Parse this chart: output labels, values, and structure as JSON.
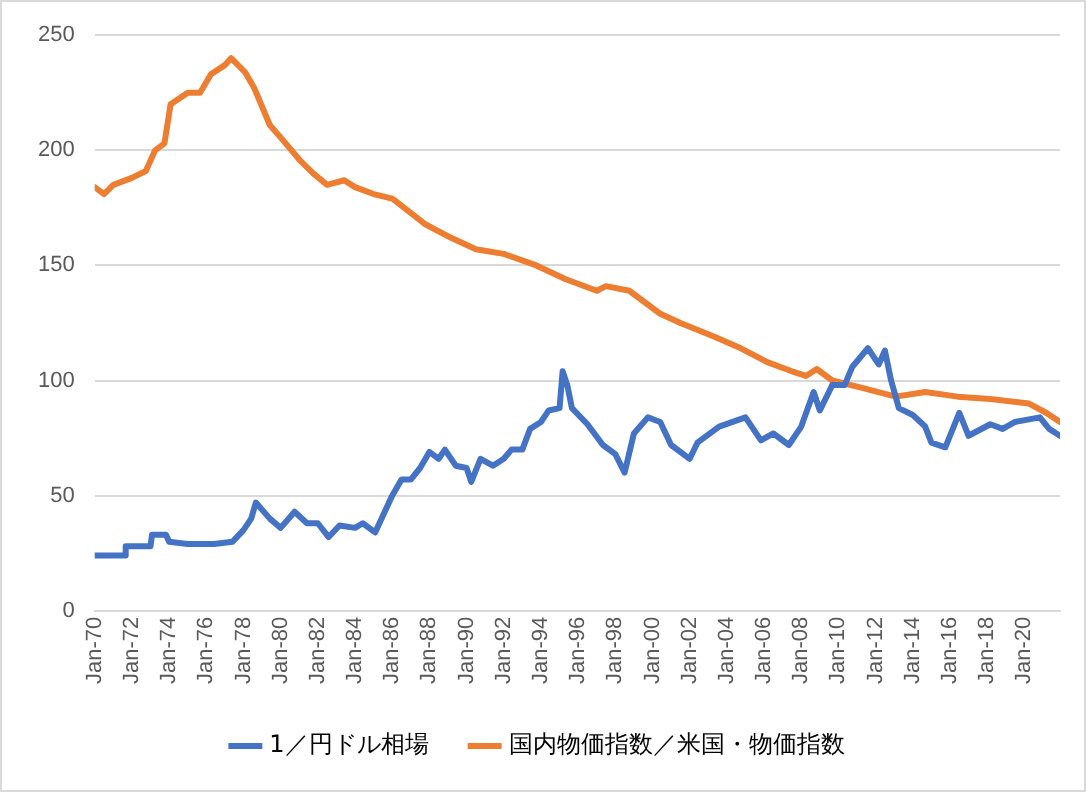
{
  "chart_data": {
    "type": "line",
    "xlim": [
      "1970-01",
      "2021-12"
    ],
    "xticks": [
      {
        "value": "1970-01",
        "label": "Jan-70"
      },
      {
        "value": "1972-01",
        "label": "Jan-72"
      },
      {
        "value": "1974-01",
        "label": "Jan-74"
      },
      {
        "value": "1976-01",
        "label": "Jan-76"
      },
      {
        "value": "1978-01",
        "label": "Jan-78"
      },
      {
        "value": "1980-01",
        "label": "Jan-80"
      },
      {
        "value": "1982-01",
        "label": "Jan-82"
      },
      {
        "value": "1984-01",
        "label": "Jan-84"
      },
      {
        "value": "1986-01",
        "label": "Jan-86"
      },
      {
        "value": "1988-01",
        "label": "Jan-88"
      },
      {
        "value": "1990-01",
        "label": "Jan-90"
      },
      {
        "value": "1992-01",
        "label": "Jan-92"
      },
      {
        "value": "1994-01",
        "label": "Jan-94"
      },
      {
        "value": "1996-01",
        "label": "Jan-96"
      },
      {
        "value": "1998-01",
        "label": "Jan-98"
      },
      {
        "value": "2000-01",
        "label": "Jan-00"
      },
      {
        "value": "2002-01",
        "label": "Jan-02"
      },
      {
        "value": "2004-01",
        "label": "Jan-04"
      },
      {
        "value": "2006-01",
        "label": "Jan-06"
      },
      {
        "value": "2008-01",
        "label": "Jan-08"
      },
      {
        "value": "2010-01",
        "label": "Jan-10"
      },
      {
        "value": "2012-01",
        "label": "Jan-12"
      },
      {
        "value": "2014-01",
        "label": "Jan-14"
      },
      {
        "value": "2016-01",
        "label": "Jan-16"
      },
      {
        "value": "2018-01",
        "label": "Jan-18"
      },
      {
        "value": "2020-01",
        "label": "Jan-20"
      }
    ],
    "ylim": [
      0,
      250
    ],
    "yticks": [
      0,
      50,
      100,
      150,
      200,
      250
    ],
    "grid": "y",
    "legend": "bottom",
    "marker": "none",
    "line_style": "solid",
    "series": [
      {
        "name": "1／円ドル相場",
        "color": "#4472c4",
        "x": [
          "1970-01",
          "1971-08",
          "1971-09",
          "1973-01",
          "1973-02",
          "1973-11",
          "1974-01",
          "1975-01",
          "1976-06",
          "1977-06",
          "1978-01",
          "1978-06",
          "1978-09",
          "1979-06",
          "1980-01",
          "1980-10",
          "1981-06",
          "1982-01",
          "1982-08",
          "1983-03",
          "1984-01",
          "1984-06",
          "1985-02",
          "1986-01",
          "1986-07",
          "1987-01",
          "1987-07",
          "1988-01",
          "1988-07",
          "1988-11",
          "1989-06",
          "1990-01",
          "1990-04",
          "1990-10",
          "1991-06",
          "1992-01",
          "1992-06",
          "1993-01",
          "1993-06",
          "1994-01",
          "1994-06",
          "1995-01",
          "1995-03",
          "1995-06",
          "1995-09",
          "1996-07",
          "1997-05",
          "1998-01",
          "1998-07",
          "1999-01",
          "1999-10",
          "2000-06",
          "2001-01",
          "2002-01",
          "2002-06",
          "2003-08",
          "2005-01",
          "2005-11",
          "2006-07",
          "2007-05",
          "2008-01",
          "2008-09",
          "2009-01",
          "2009-09",
          "2010-05",
          "2010-10",
          "2011-08",
          "2012-03",
          "2012-07",
          "2012-11",
          "2013-04",
          "2014-01",
          "2014-09",
          "2015-01",
          "2015-10",
          "2016-07",
          "2017-01",
          "2018-03",
          "2018-11",
          "2019-07",
          "2020-11",
          "2021-05",
          "2021-12"
        ],
        "values": [
          24,
          24,
          28,
          28,
          33,
          33,
          30,
          29,
          29,
          30,
          35,
          40,
          47,
          40,
          36,
          43,
          38,
          38,
          32,
          37,
          36,
          38,
          34,
          50,
          57,
          57,
          62,
          69,
          66,
          70,
          63,
          62,
          56,
          66,
          63,
          66,
          70,
          70,
          79,
          82,
          87,
          88,
          104,
          98,
          88,
          81,
          72,
          68,
          60,
          77,
          84,
          82,
          72,
          66,
          73,
          80,
          84,
          74,
          77,
          72,
          80,
          95,
          87,
          98,
          98,
          106,
          114,
          107,
          113,
          100,
          88,
          85,
          80,
          73,
          71,
          86,
          76,
          81,
          79,
          82,
          84,
          79,
          76
        ]
      },
      {
        "name": "国内物価指数／米国・物価指数",
        "color": "#ed7d31",
        "x": [
          "1970-01",
          "1970-07",
          "1971-01",
          "1972-01",
          "1972-10",
          "1973-04",
          "1973-10",
          "1974-02",
          "1975-01",
          "1975-09",
          "1976-04",
          "1977-01",
          "1977-05",
          "1978-02",
          "1978-08",
          "1979-06",
          "1980-03",
          "1981-01",
          "1981-10",
          "1982-07",
          "1983-06",
          "1984-01",
          "1985-01",
          "1986-01",
          "1986-03",
          "1987-10",
          "1989-03",
          "1990-07",
          "1992-01",
          "1993-10",
          "1995-05",
          "1997-01",
          "1997-07",
          "1998-10",
          "2000-06",
          "2001-07",
          "2003-05",
          "2004-10",
          "2006-03",
          "2007-07",
          "2008-04",
          "2008-11",
          "2009-09",
          "2011-03",
          "2013-02",
          "2014-09",
          "2016-06",
          "2018-03",
          "2020-04",
          "2021-03",
          "2021-12"
        ],
        "values": [
          184,
          181,
          185,
          188,
          191,
          200,
          203,
          220,
          225,
          225,
          233,
          237,
          240,
          234,
          227,
          211,
          204,
          196,
          190,
          185,
          187,
          184,
          181,
          179,
          178,
          168,
          162,
          157,
          155,
          150,
          144,
          139,
          141,
          139,
          129,
          125,
          119,
          114,
          108,
          104,
          102,
          105,
          100,
          97,
          93,
          95,
          93,
          92,
          90,
          86,
          82
        ]
      }
    ]
  }
}
